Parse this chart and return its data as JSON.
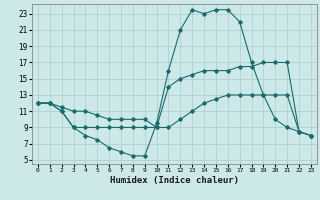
{
  "xlabel": "Humidex (Indice chaleur)",
  "ylabel": "",
  "bg_color": "#cce8e8",
  "grid_color": "#b0d0d0",
  "line_color": "#1a6b6b",
  "xlim": [
    -0.5,
    23.5
  ],
  "ylim": [
    4.5,
    24.2
  ],
  "xticks": [
    0,
    1,
    2,
    3,
    4,
    5,
    6,
    7,
    8,
    9,
    10,
    11,
    12,
    13,
    14,
    15,
    16,
    17,
    18,
    19,
    20,
    21,
    22,
    23
  ],
  "yticks": [
    5,
    7,
    9,
    11,
    13,
    15,
    17,
    19,
    21,
    23
  ],
  "line1_x": [
    0,
    1,
    2,
    3,
    4,
    5,
    6,
    7,
    8,
    9,
    10,
    11,
    12,
    13,
    14,
    15,
    16,
    17,
    18,
    19,
    20,
    21,
    22,
    23
  ],
  "line1_y": [
    12,
    12,
    11,
    9,
    8,
    7.5,
    6.5,
    6,
    5.5,
    5.5,
    9.5,
    16,
    21,
    23.5,
    23,
    23.5,
    23.5,
    22,
    17,
    13,
    10,
    9,
    8.5,
    8
  ],
  "line2_x": [
    0,
    1,
    2,
    3,
    4,
    5,
    6,
    7,
    8,
    9,
    10,
    11,
    12,
    13,
    14,
    15,
    16,
    17,
    18,
    19,
    20,
    21,
    22,
    23
  ],
  "line2_y": [
    12,
    12,
    11.5,
    11,
    11,
    10.5,
    10,
    10,
    10,
    10,
    9,
    9,
    10,
    11,
    12,
    12.5,
    13,
    13,
    13,
    13,
    13,
    13,
    8.5,
    8
  ],
  "line3_x": [
    0,
    1,
    2,
    3,
    4,
    5,
    6,
    7,
    8,
    9,
    10,
    11,
    12,
    13,
    14,
    15,
    16,
    17,
    18,
    19,
    20,
    21,
    22,
    23
  ],
  "line3_y": [
    12,
    12,
    11,
    9,
    9,
    9,
    9,
    9,
    9,
    9,
    9,
    14,
    15,
    15.5,
    16,
    16,
    16,
    16.5,
    16.5,
    17,
    17,
    17,
    8.5,
    8
  ]
}
